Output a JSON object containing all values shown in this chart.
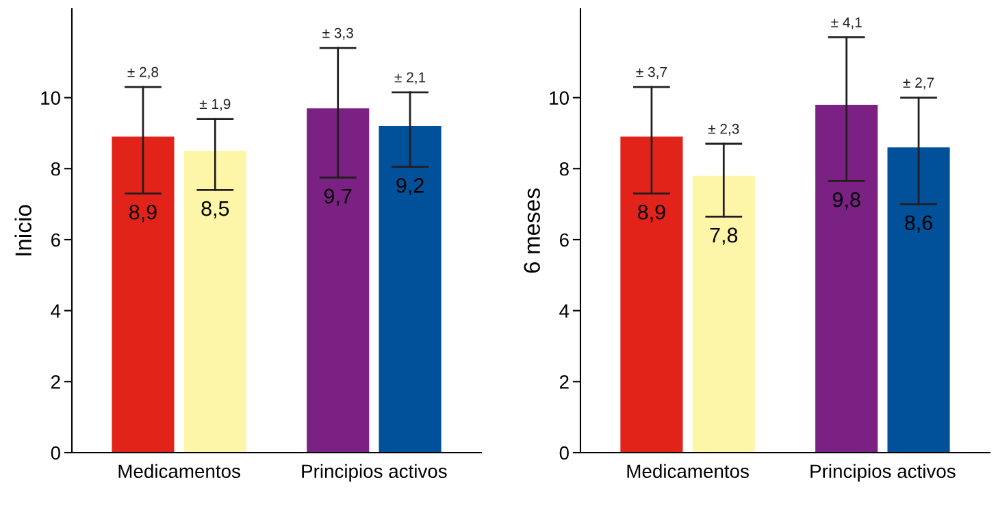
{
  "chart_data": [
    {
      "type": "bar",
      "ylabel": "Inicio",
      "categories": [
        "Medicamentos",
        "Principios activos"
      ],
      "ylim": [
        0,
        12.5
      ],
      "yticks": [
        0,
        2,
        4,
        6,
        8,
        10
      ],
      "grid": false,
      "legend": false,
      "series": [
        {
          "colors": [
            "#e2231a",
            "#7b2183"
          ],
          "values": [
            8.9,
            9.7
          ],
          "value_labels": [
            "8,9",
            "9,7"
          ],
          "errors": [
            [
              7.3,
              10.3
            ],
            [
              7.75,
              11.4
            ]
          ]
        },
        {
          "colors": [
            "#fdf6a8",
            "#00509a"
          ],
          "values": [
            8.5,
            9.2
          ],
          "value_labels": [
            "8,5",
            "9,2"
          ],
          "errors": [
            [
              7.4,
              9.4
            ],
            [
              8.05,
              10.15
            ]
          ]
        }
      ],
      "annotations": [
        "± 2,8",
        "± 3,3",
        "± 1,9",
        "± 2,1"
      ]
    },
    {
      "type": "bar",
      "ylabel": "6 meses",
      "categories": [
        "Medicamentos",
        "Principios activos"
      ],
      "ylim": [
        0,
        12.5
      ],
      "yticks": [
        0,
        2,
        4,
        6,
        8,
        10
      ],
      "grid": false,
      "legend": false,
      "series": [
        {
          "colors": [
            "#e2231a",
            "#7b2183"
          ],
          "values": [
            8.9,
            9.8
          ],
          "value_labels": [
            "8,9",
            "9,8"
          ],
          "errors": [
            [
              7.3,
              10.3
            ],
            [
              7.65,
              11.7
            ]
          ]
        },
        {
          "colors": [
            "#fdf6a8",
            "#00509a"
          ],
          "values": [
            7.8,
            8.6
          ],
          "value_labels": [
            "7,8",
            "8,6"
          ],
          "errors": [
            [
              6.65,
              8.7
            ],
            [
              7.0,
              10.0
            ]
          ]
        }
      ],
      "annotations": [
        "± 3,7",
        "± 4,1",
        "± 2,3",
        "± 2,7"
      ]
    }
  ]
}
